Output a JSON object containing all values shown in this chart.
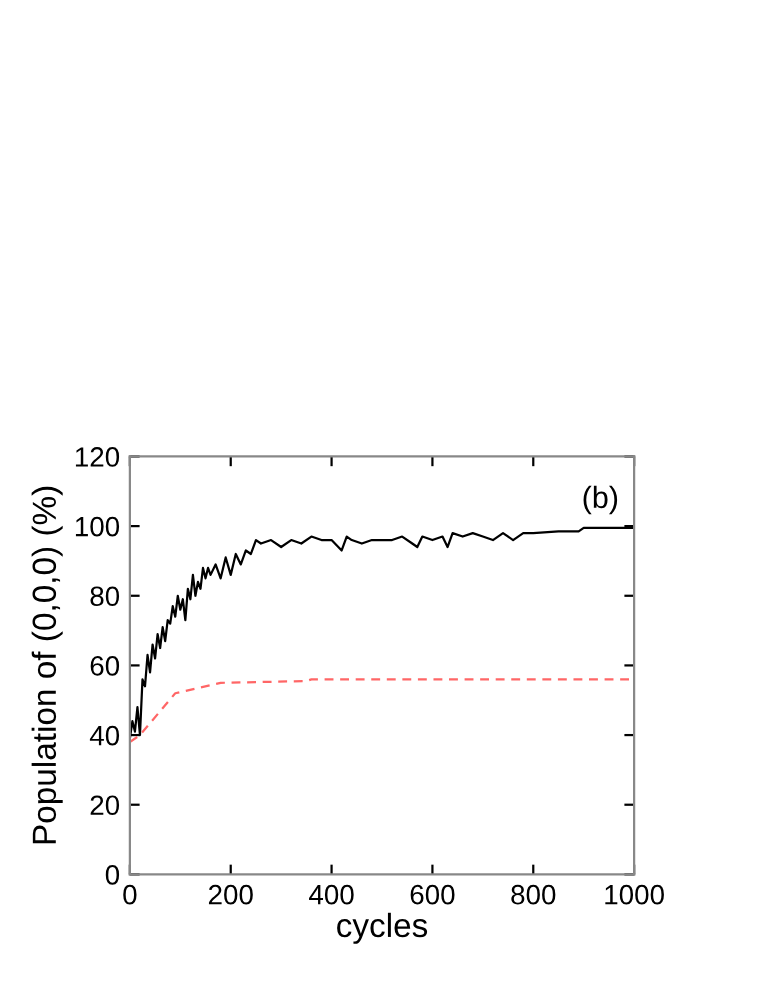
{
  "chart_data": {
    "type": "line",
    "xlabel": "cycles",
    "ylabel": "Population of (0,0,0) (%)",
    "xlim": [
      0,
      1000
    ],
    "ylim": [
      0,
      120
    ],
    "xticks": [
      0,
      200,
      400,
      600,
      800,
      1000
    ],
    "yticks": [
      0,
      20,
      40,
      60,
      80,
      100,
      120
    ],
    "grid": false,
    "legend": false,
    "annotations": [
      "(b)"
    ],
    "series": [
      {
        "color": "#000000",
        "line_style": "solid",
        "x": [
          0,
          5,
          10,
          15,
          20,
          25,
          30,
          35,
          40,
          45,
          50,
          55,
          60,
          65,
          70,
          75,
          80,
          85,
          90,
          95,
          100,
          105,
          110,
          115,
          120,
          125,
          130,
          135,
          140,
          145,
          150,
          155,
          160,
          170,
          180,
          190,
          200,
          210,
          220,
          230,
          240,
          250,
          260,
          280,
          300,
          320,
          340,
          360,
          380,
          400,
          420,
          430,
          440,
          460,
          480,
          500,
          520,
          540,
          560,
          570,
          580,
          600,
          620,
          630,
          640,
          660,
          680,
          700,
          720,
          740,
          760,
          770,
          780,
          800,
          850,
          890,
          900,
          950,
          1000
        ],
        "values": [
          39,
          44,
          41,
          48,
          40,
          56,
          54,
          63,
          58,
          66,
          62,
          69,
          65,
          71,
          67,
          73,
          72,
          77,
          74,
          80,
          76,
          79,
          73,
          82,
          79,
          86,
          80,
          84,
          82,
          88,
          85,
          88,
          86,
          89,
          85,
          91,
          86,
          92,
          89,
          93,
          92,
          96,
          95,
          96,
          94,
          96,
          95,
          97,
          96,
          96,
          93,
          97,
          96,
          95,
          96,
          96,
          96,
          97,
          95,
          94,
          97,
          96,
          97,
          94,
          98,
          97,
          98,
          97,
          96,
          98,
          96,
          97,
          98,
          98,
          98.5,
          98.5,
          99.5,
          99.5,
          99.5
        ]
      },
      {
        "color": "#ff6666",
        "line_style": "dashed",
        "x": [
          0,
          20,
          90,
          180,
          350,
          360,
          1000
        ],
        "values": [
          38,
          40,
          52,
          55,
          55.5,
          56,
          56
        ]
      }
    ]
  }
}
